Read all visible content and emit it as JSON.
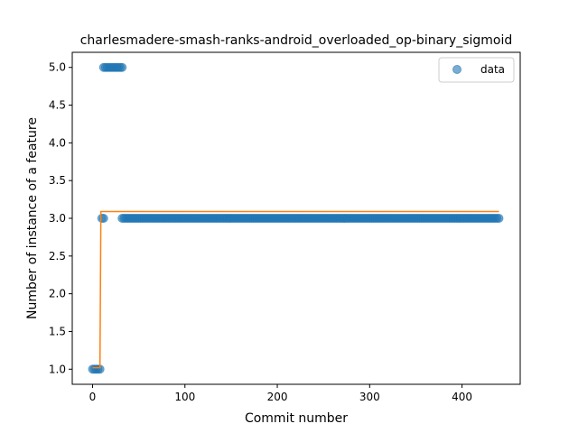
{
  "chart_data": {
    "type": "scatter",
    "title": "charlesmadere-smash-ranks-android_overloaded_op-binary_sigmoid",
    "xlabel": "Commit number",
    "ylabel": "Number of instance of a feature",
    "xlim": [
      -22,
      463
    ],
    "ylim": [
      0.8,
      5.2
    ],
    "x_ticks": [
      0,
      100,
      200,
      300,
      400
    ],
    "y_ticks": [
      1.0,
      1.5,
      2.0,
      2.5,
      3.0,
      3.5,
      4.0,
      4.5,
      5.0
    ],
    "x_tick_labels": [
      "0",
      "100",
      "200",
      "300",
      "400"
    ],
    "y_tick_labels": [
      "1.0",
      "1.5",
      "2.0",
      "2.5",
      "3.0",
      "3.5",
      "4.0",
      "4.5",
      "5.0"
    ],
    "legend": {
      "placement": "top-right",
      "entries": [
        "data"
      ]
    },
    "grid": false,
    "series": [
      {
        "name": "data",
        "kind": "scatter",
        "color": "#1f77b4",
        "segments": [
          {
            "x_start": 0,
            "x_end": 9,
            "y": 1.0
          },
          {
            "x_start": 10,
            "x_end": 12,
            "y": 3.0
          },
          {
            "x_start": 12,
            "x_end": 32,
            "y": 5.0
          },
          {
            "x_start": 32,
            "x_end": 440,
            "y": 3.0
          }
        ]
      },
      {
        "kind": "line",
        "color": "#ff7f0e",
        "x": [
          0,
          8,
          9,
          440
        ],
        "y": [
          1.02,
          1.02,
          3.09,
          3.09
        ]
      }
    ]
  }
}
